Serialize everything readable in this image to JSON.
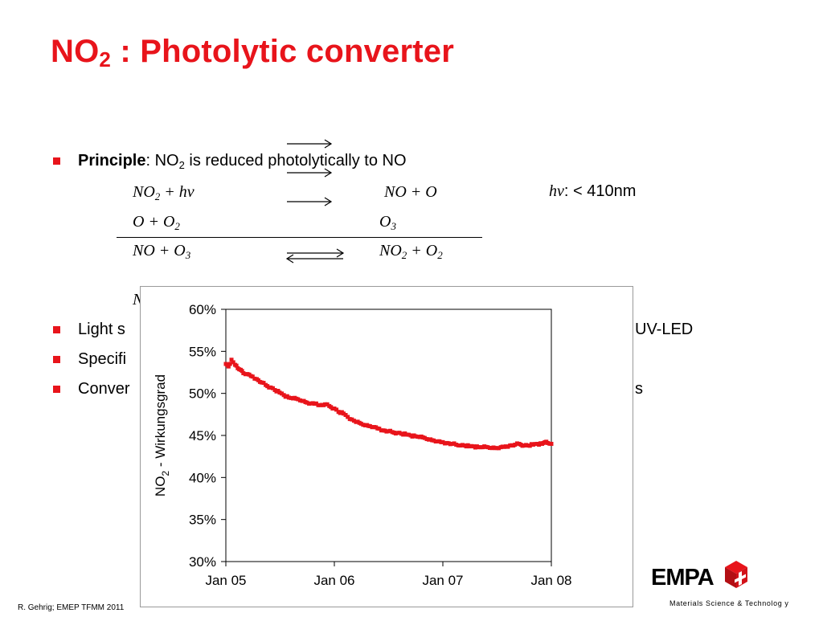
{
  "slide": {
    "title_main": "NO",
    "title_sub": "2",
    "title_rest": " : Photolytic converter",
    "footer_left": "R. Gehrig; EMEP TFMM 2011",
    "footer_right": "Materials Science & Technolog y",
    "logo_text": "EMPA"
  },
  "bullets": [
    {
      "bold": "Principle",
      "text_a": ": NO",
      "sub": "2",
      "text_b": " is reduced photolytically to NO"
    },
    {
      "text": "Light s"
    },
    {
      "text": "Specifi"
    },
    {
      "text": "Conver"
    }
  ],
  "bullet_tails": [
    "UV-LED",
    "s"
  ],
  "equations": [
    {
      "lhs_a": "NO",
      "lhs_sub": "2",
      "lhs_b": " + hv",
      "rhs_a": "NO + O",
      "rhs_sub": "",
      "rhs_b": ""
    },
    {
      "lhs_a": "O + O",
      "lhs_sub": "2",
      "lhs_b": "",
      "rhs_a": "O",
      "rhs_sub": "3",
      "rhs_b": ""
    },
    {
      "lhs_a": "NO + O",
      "lhs_sub": "3",
      "lhs_b": "",
      "rhs_a": "NO",
      "rhs_sub": "2",
      "rhs_b": " + O",
      "rhs_sub2": "2"
    }
  ],
  "hv_note": {
    "symbol": "hv",
    "text": ": < 410nm"
  },
  "partial_eq_letter": "N",
  "chart_data": {
    "type": "scatter",
    "ylabel_main": "NO",
    "ylabel_sub": "2",
    "ylabel_rest": " - Wirkungsgrad",
    "xlabel": "",
    "x_ticks": [
      "Jan 05",
      "Jan 06",
      "Jan 07",
      "Jan 08"
    ],
    "y_ticks": [
      "30%",
      "35%",
      "40%",
      "45%",
      "50%",
      "55%",
      "60%"
    ],
    "ylim": [
      30,
      60
    ],
    "xlim": [
      "2005-01-01",
      "2008-01-01"
    ],
    "grid": false,
    "color": "#e8141b",
    "series": [
      {
        "x": [
          "2005-01-01",
          "2005-01-10",
          "2005-01-20",
          "2005-02-01",
          "2005-02-10",
          "2005-02-20",
          "2005-03-01",
          "2005-03-15",
          "2005-04-01",
          "2005-04-15",
          "2005-05-01",
          "2005-05-15",
          "2005-06-01",
          "2005-06-15",
          "2005-07-01",
          "2005-07-15",
          "2005-08-01",
          "2005-08-15",
          "2005-09-01",
          "2005-09-15",
          "2005-10-01",
          "2005-10-15",
          "2005-11-01",
          "2005-11-15",
          "2005-12-01",
          "2005-12-15",
          "2006-01-01",
          "2006-01-15",
          "2006-02-01",
          "2006-02-15",
          "2006-03-01",
          "2006-03-15",
          "2006-04-01",
          "2006-04-15",
          "2006-05-01",
          "2006-05-15",
          "2006-06-01",
          "2006-06-15",
          "2006-07-01",
          "2006-07-15",
          "2006-08-01",
          "2006-08-15",
          "2006-09-01",
          "2006-09-15",
          "2006-10-01",
          "2006-10-15",
          "2006-11-01",
          "2006-11-15",
          "2006-12-01",
          "2006-12-15",
          "2007-01-01",
          "2007-01-15",
          "2007-02-01",
          "2007-02-15",
          "2007-03-01",
          "2007-03-15",
          "2007-04-01",
          "2007-04-15",
          "2007-05-01",
          "2007-05-15",
          "2007-06-01",
          "2007-06-15",
          "2007-07-01",
          "2007-07-15",
          "2007-08-01",
          "2007-08-15",
          "2007-09-01",
          "2007-09-15",
          "2007-10-01",
          "2007-10-15",
          "2007-11-01",
          "2007-11-15",
          "2007-12-01",
          "2007-12-10",
          "2007-12-20",
          "2008-01-01"
        ],
        "values": [
          53.5,
          53.2,
          54.0,
          53.4,
          53.0,
          52.8,
          52.4,
          52.3,
          52.0,
          51.7,
          51.3,
          51.0,
          50.7,
          50.4,
          50.1,
          49.8,
          49.5,
          49.4,
          49.3,
          49.1,
          48.9,
          48.8,
          48.8,
          48.6,
          48.7,
          48.5,
          48.2,
          47.8,
          47.6,
          47.2,
          46.9,
          46.6,
          46.4,
          46.2,
          46.1,
          46.0,
          45.8,
          45.6,
          45.5,
          45.4,
          45.3,
          45.2,
          45.1,
          45.0,
          44.9,
          44.8,
          44.7,
          44.5,
          44.4,
          44.3,
          44.2,
          44.1,
          44.0,
          43.9,
          43.8,
          43.8,
          43.7,
          43.7,
          43.6,
          43.6,
          43.6,
          43.5,
          43.5,
          43.6,
          43.7,
          43.8,
          43.9,
          44.0,
          43.8,
          43.8,
          43.9,
          44.0,
          44.0,
          44.2,
          44.1,
          44.0
        ]
      }
    ]
  }
}
